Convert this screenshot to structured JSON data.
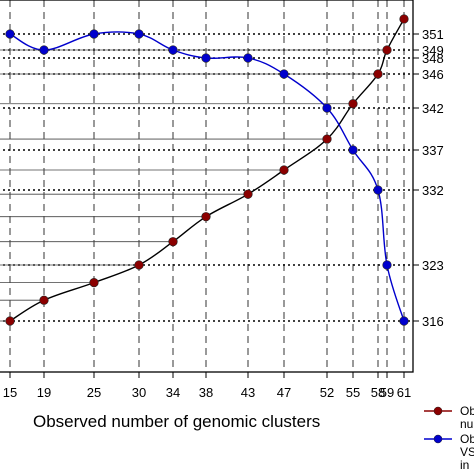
{
  "chart_data": {
    "type": "line",
    "xlabel": "Observed number of genomic clusters",
    "x_ticks": [
      15,
      19,
      25,
      30,
      34,
      38,
      43,
      47,
      52,
      55,
      58,
      59,
      61
    ],
    "x_tick_labels": [
      "15",
      "19",
      "25",
      "30",
      "34",
      "38",
      "43",
      "47",
      "52",
      "55",
      "58",
      "59",
      "61"
    ],
    "y_ticks": [
      316,
      323,
      332,
      337,
      342,
      346,
      348,
      349,
      351
    ],
    "y_tick_labels": [
      "316",
      "323",
      "332",
      "337",
      "342",
      "346",
      "348",
      "349",
      "351"
    ],
    "ylim": [
      315,
      353
    ],
    "grid": true,
    "series": [
      {
        "color": "#8B0000",
        "x": [
          15,
          19,
          25,
          30,
          34,
          38,
          43,
          47,
          52,
          55,
          58,
          59,
          61
        ],
        "y": [
          316,
          318.6,
          320.8,
          323,
          325.8,
          328.8,
          331.5,
          334.5,
          338.3,
          342.5,
          346,
          349,
          353
        ]
      },
      {
        "color": "#0000CD",
        "x": [
          15,
          19,
          25,
          30,
          34,
          38,
          43,
          47,
          52,
          55,
          58,
          59,
          61
        ],
        "y": [
          351,
          349,
          351,
          351,
          349,
          348,
          348,
          346,
          342,
          337,
          332,
          323,
          316
        ]
      }
    ],
    "legend": {
      "placement": "bottom-right",
      "entries": [
        "Ob nu",
        "Ob VS in"
      ]
    }
  }
}
